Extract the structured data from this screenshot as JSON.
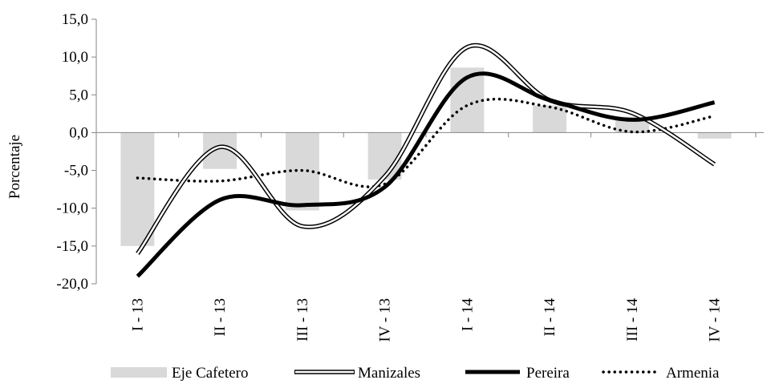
{
  "chart_data": {
    "type": "bar",
    "categories": [
      "I - 13",
      "II - 13",
      "III - 13",
      "IV - 13",
      "I - 14",
      "II - 14",
      "III - 14",
      "IV - 14"
    ],
    "ylabel": "Porcentaje",
    "xlabel": "",
    "ylim": [
      -20,
      15
    ],
    "yticks": [
      15,
      10,
      5,
      0,
      -5,
      -10,
      -15,
      -20
    ],
    "ytick_labels": [
      "15,0",
      "10,0",
      "5,0",
      "0,0",
      "-5,0",
      "-10,0",
      "-15,0",
      "-20,0"
    ],
    "grid": false,
    "legend_position": "bottom",
    "series": [
      {
        "name": "Eje Cafetero",
        "kind": "bar",
        "color": "#d9d9d9",
        "values": [
          -15.0,
          -4.8,
          -10.3,
          -6.2,
          8.6,
          3.6,
          2.1,
          -0.8
        ]
      },
      {
        "name": "Manizales",
        "kind": "line",
        "style": "double",
        "color": "#000000",
        "values": [
          -16.0,
          -1.9,
          -12.4,
          -5.8,
          11.3,
          4.3,
          2.6,
          -4.2
        ]
      },
      {
        "name": "Pereira",
        "kind": "line",
        "style": "thick",
        "color": "#000000",
        "values": [
          -19.0,
          -8.9,
          -9.6,
          -7.2,
          7.3,
          4.3,
          1.7,
          4.0
        ]
      },
      {
        "name": "Armenia",
        "kind": "line",
        "style": "dotted",
        "color": "#000000",
        "values": [
          -6.0,
          -6.4,
          -5.0,
          -6.8,
          3.6,
          3.4,
          0.1,
          2.2
        ]
      }
    ]
  }
}
